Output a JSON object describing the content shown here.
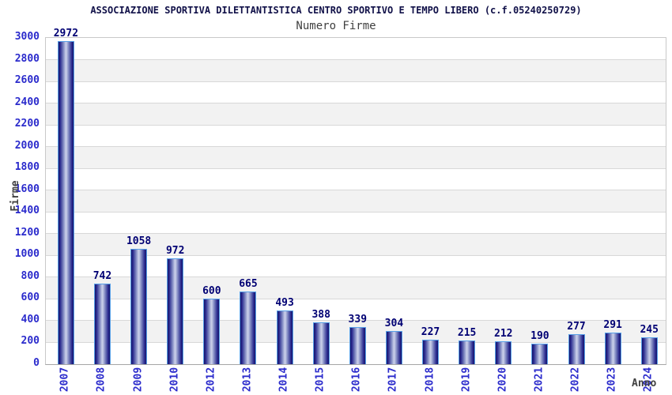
{
  "chart_data": {
    "type": "bar",
    "title": "ASSOCIAZIONE SPORTIVA DILETTANTISTICA CENTRO SPORTIVO E TEMPO LIBERO (c.f.05240250729)",
    "subtitle": "Numero Firme",
    "xlabel": "Anno",
    "ylabel": "Firme",
    "categories": [
      "2007",
      "2008",
      "2009",
      "2010",
      "2012",
      "2013",
      "2014",
      "2015",
      "2016",
      "2017",
      "2018",
      "2019",
      "2020",
      "2021",
      "2022",
      "2023",
      "2024"
    ],
    "values": [
      2972,
      742,
      1058,
      972,
      600,
      665,
      493,
      388,
      339,
      304,
      227,
      215,
      212,
      190,
      277,
      291,
      245
    ],
    "ylim": [
      0,
      3000
    ],
    "ytick_step": 200,
    "grid": true,
    "legend": "none",
    "colors": {
      "title": "#101048",
      "subtitle": "#404040",
      "axis_label": "#404040",
      "tick_label": "#2b2bcc",
      "value_label": "#000073",
      "bar_border": "#58a0e8",
      "bar_dark": "#14146a",
      "bar_mid": "#7d86c0",
      "bar_light": "#c7cde8",
      "band_gray": "#f2f2f2",
      "gridline": "#d8d8d8"
    }
  }
}
